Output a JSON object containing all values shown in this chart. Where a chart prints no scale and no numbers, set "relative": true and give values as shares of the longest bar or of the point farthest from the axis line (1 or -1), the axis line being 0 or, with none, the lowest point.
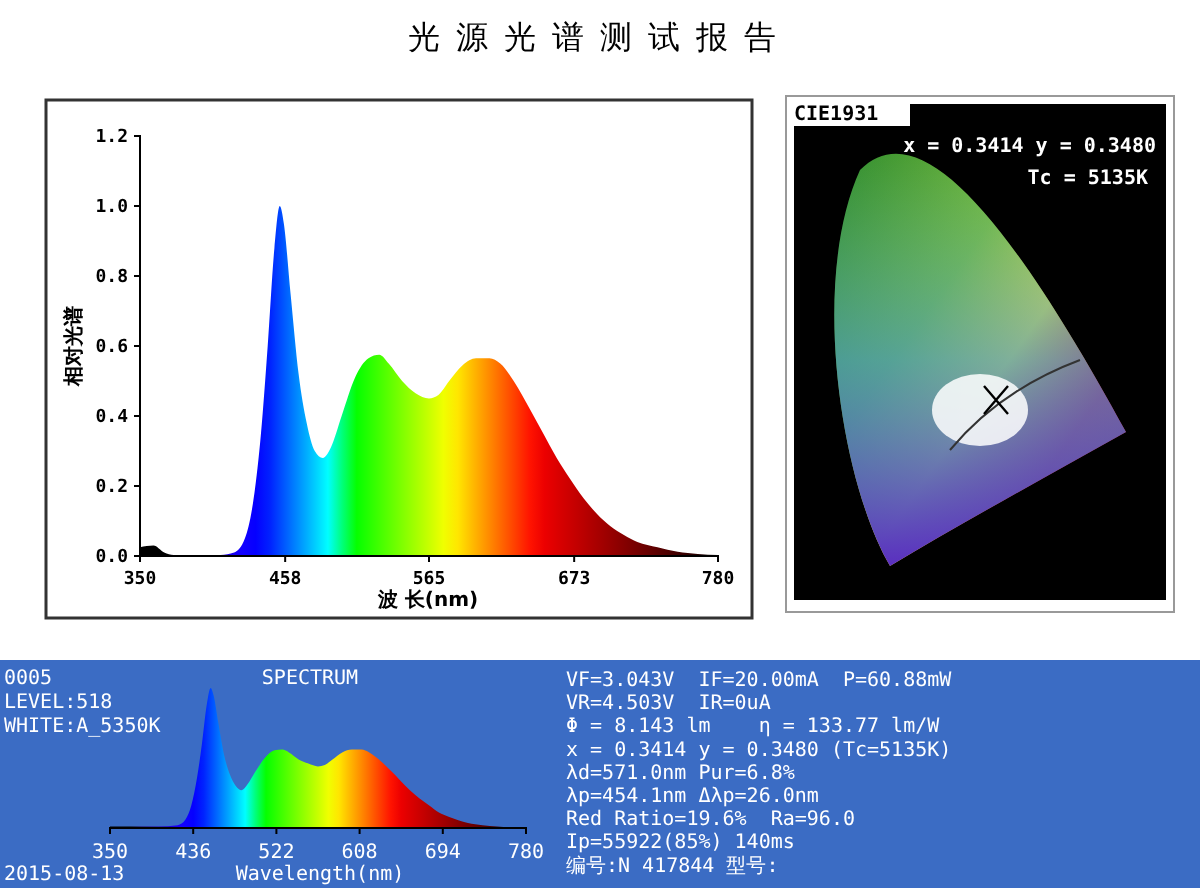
{
  "chart_data": [
    {
      "type": "area",
      "title": "光源光谱测试报告",
      "xlabel": "波 长(nm)",
      "ylabel": "相对光谱",
      "xlim": [
        350,
        780
      ],
      "xticks": [
        350,
        458,
        565,
        673,
        780
      ],
      "ylim": [
        0,
        1.2
      ],
      "yticks": [
        {
          "value": 0,
          "label": "0.0"
        },
        {
          "value": 0.2,
          "label": "0.2"
        },
        {
          "value": 0.4,
          "label": "0.4"
        },
        {
          "value": 0.6,
          "label": "0.6"
        },
        {
          "value": 0.8,
          "label": "0.8"
        },
        {
          "value": 1,
          "label": "1.0"
        },
        {
          "value": 1.2,
          "label": "1.2"
        }
      ],
      "x": [
        350,
        360,
        368,
        375,
        410,
        420,
        428,
        434,
        440,
        445,
        450,
        454,
        457,
        462,
        468,
        474,
        480,
        486,
        492,
        500,
        510,
        520,
        528,
        535,
        545,
        555,
        565,
        572,
        580,
        590,
        600,
        610,
        618,
        628,
        640,
        650,
        660,
        670,
        680,
        690,
        700,
        710,
        720,
        735,
        750,
        765,
        780
      ],
      "values": [
        0.025,
        0.03,
        0.01,
        0.003,
        0.003,
        0.01,
        0.05,
        0.15,
        0.35,
        0.6,
        0.88,
        1.0,
        0.95,
        0.75,
        0.52,
        0.38,
        0.3,
        0.28,
        0.31,
        0.4,
        0.51,
        0.565,
        0.575,
        0.55,
        0.5,
        0.465,
        0.45,
        0.46,
        0.5,
        0.545,
        0.565,
        0.565,
        0.55,
        0.5,
        0.42,
        0.35,
        0.28,
        0.22,
        0.165,
        0.12,
        0.085,
        0.06,
        0.04,
        0.025,
        0.012,
        0.006,
        0.003
      ]
    },
    {
      "type": "other",
      "title": "CIE1931",
      "annotations": [
        "x = 0.3414 y = 0.3480",
        "Tc = 5135K"
      ]
    },
    {
      "type": "area",
      "relative": true,
      "title": "SPECTRUM",
      "xlabel": "Wavelength(nm)",
      "xlim": [
        350,
        780
      ],
      "xticks": [
        350,
        436,
        522,
        608,
        694,
        780
      ],
      "annotations": [
        "0005",
        "LEVEL:518",
        "WHITE:A_5350K",
        "2015-08-13"
      ],
      "x": [
        350,
        370,
        400,
        420,
        428,
        434,
        440,
        445,
        450,
        454,
        457,
        462,
        468,
        474,
        480,
        486,
        492,
        500,
        510,
        520,
        528,
        535,
        545,
        555,
        565,
        572,
        580,
        590,
        600,
        610,
        618,
        628,
        640,
        650,
        660,
        670,
        680,
        690,
        700,
        710,
        720,
        735,
        750,
        765,
        780
      ],
      "values": [
        0.01,
        0.01,
        0.01,
        0.02,
        0.06,
        0.16,
        0.36,
        0.6,
        0.88,
        1.0,
        0.95,
        0.75,
        0.52,
        0.38,
        0.3,
        0.27,
        0.31,
        0.4,
        0.5,
        0.555,
        0.56,
        0.54,
        0.49,
        0.46,
        0.44,
        0.45,
        0.49,
        0.54,
        0.56,
        0.56,
        0.54,
        0.49,
        0.41,
        0.34,
        0.27,
        0.21,
        0.16,
        0.11,
        0.08,
        0.055,
        0.035,
        0.02,
        0.01,
        0.005,
        0.003
      ]
    },
    {
      "type": "other",
      "annotations": [
        "VF=3.043V  IF=20.00mA  P=60.88mW",
        "VR=4.503V  IR=0uA",
        "Φ = 8.143 lm    η = 133.77 lm/W",
        "x = 0.3414 y = 0.3480 (Tc=5135K)",
        "λd=571.0nm Pur=6.8%",
        "λp=454.1nm Δλp=26.0nm",
        "Red Ratio=19.6%  Ra=96.0",
        "Ip=55922(85%) 140ms",
        "编号:N 417844 型号:"
      ]
    }
  ]
}
